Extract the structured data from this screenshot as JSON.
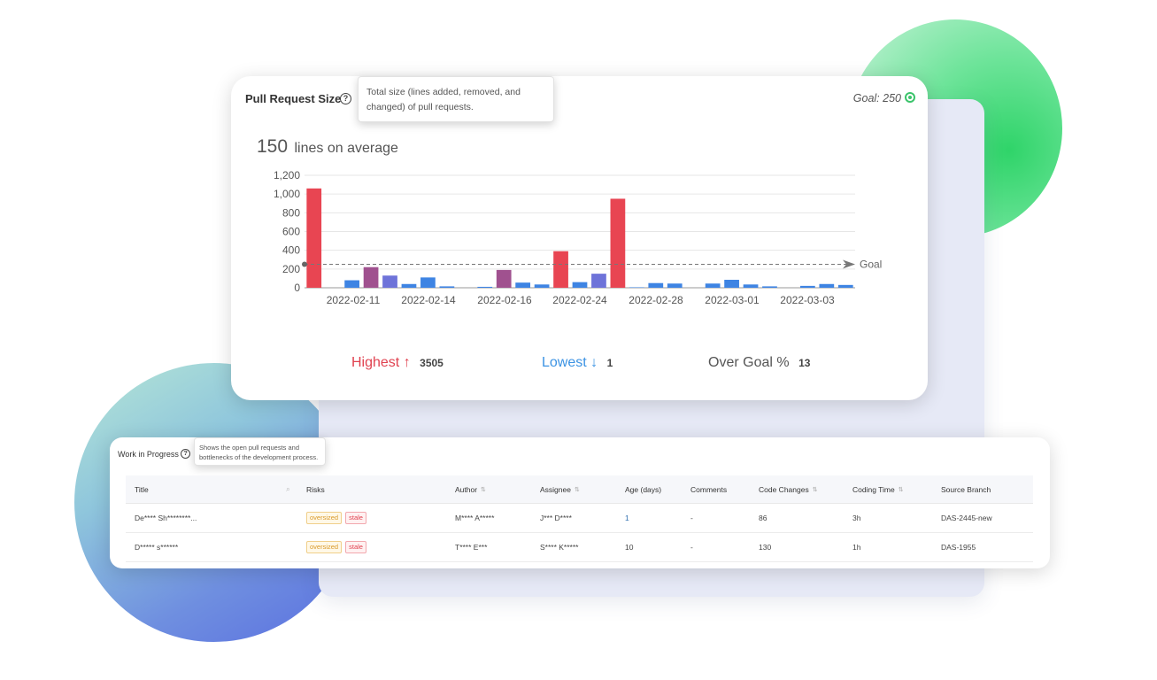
{
  "pr_card": {
    "title": "Pull Request Size",
    "help_icon": "question-circle-icon",
    "tooltip": "Total size (lines added, removed, and changed) of pull requests.",
    "goal": "Goal: 250",
    "settings_icon": "gear-icon",
    "average_value": "150",
    "average_text": "lines on average",
    "stats": {
      "highest_label": "Highest",
      "highest_arrow": "↑",
      "highest_value": "3505",
      "lowest_label": "Lowest",
      "lowest_arrow": "↓",
      "lowest_value": "1",
      "over_label": "Over Goal",
      "over_icon": "%",
      "over_value": "13"
    }
  },
  "chart_data": {
    "type": "bar",
    "ylim": [
      0,
      1200
    ],
    "yticks": [
      "0",
      "200",
      "400",
      "600",
      "800",
      "1,000",
      "1,200"
    ],
    "xticks": [
      "2022-02-11",
      "2022-02-14",
      "2022-02-16",
      "2022-02-24",
      "2022-02-28",
      "2022-03-01",
      "2022-03-03"
    ],
    "goal_value": 250,
    "goal_label": "Goal",
    "values": [
      1060,
      0,
      80,
      220,
      130,
      40,
      110,
      15,
      0,
      10,
      190,
      55,
      35,
      390,
      60,
      150,
      950,
      5,
      50,
      45,
      0,
      45,
      85,
      35,
      15,
      0,
      20,
      40,
      30
    ],
    "bar_colors": [
      "#e84552",
      "#3e84e3",
      "#3e84e3",
      "#a0518f",
      "#6e73d9",
      "#3e84e3",
      "#3e84e3",
      "#3e84e3",
      "#3e84e3",
      "#3e84e3",
      "#a0518f",
      "#3e84e3",
      "#3e84e3",
      "#e84552",
      "#3e84e3",
      "#6e73d9",
      "#e84552",
      "#3e84e3",
      "#3e84e3",
      "#3e84e3",
      "#3e84e3",
      "#3e84e3",
      "#3e84e3",
      "#3e84e3",
      "#3e84e3",
      "#3e84e3",
      "#3e84e3",
      "#3e84e3",
      "#3e84e3"
    ],
    "grid": true
  },
  "wip": {
    "title": "Work in Progress",
    "help_icon": "question-circle-icon",
    "tooltip": "Shows the open pull requests and bottlenecks of the development process.",
    "columns": [
      "Title",
      "Risks",
      "Author",
      "Assignee",
      "Age (days)",
      "Comments",
      "Code Changes",
      "Coding Time",
      "Source Branch"
    ],
    "title_search_icon": "search-icon",
    "sortable_icon": "sort-icon",
    "rows": [
      {
        "title": "De**** Sh********...",
        "risks": [
          "oversized",
          "stale"
        ],
        "author": "M**** A*****",
        "assignee": "J*** D****",
        "age": "1",
        "comments": "-",
        "code_changes": "86",
        "coding_time": "3h",
        "source_branch": "DAS-2445-new"
      },
      {
        "title": "D***** s******",
        "risks": [
          "oversized",
          "stale"
        ],
        "author": "T**** E***",
        "assignee": "S**** K*****",
        "age": "10",
        "comments": "-",
        "code_changes": "130",
        "coding_time": "1h",
        "source_branch": "DAS-1955"
      }
    ]
  }
}
